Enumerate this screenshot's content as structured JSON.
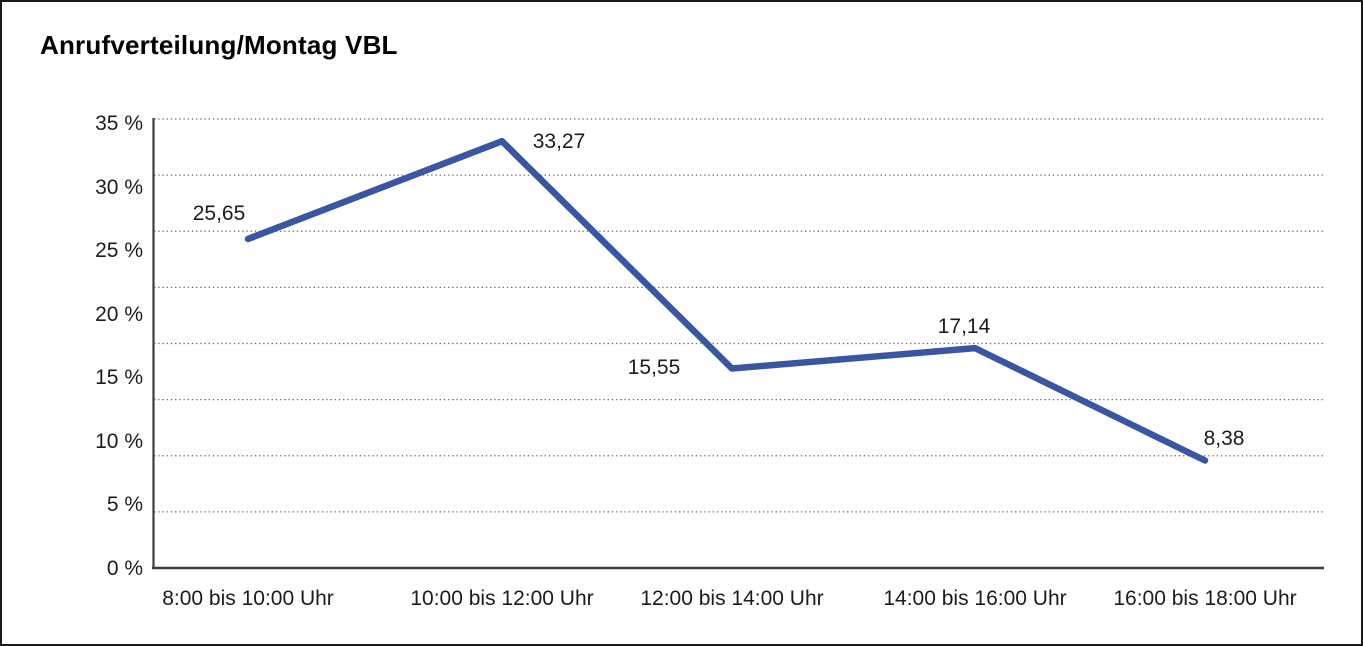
{
  "window": {
    "background": "#ffffff",
    "frame_border_color": "#1a1a1a"
  },
  "chart_data": {
    "type": "line",
    "title": "Anrufverteilung/Montag VBL",
    "categories": [
      "8:00 bis 10:00 Uhr",
      "10:00 bis 12:00 Uhr",
      "12:00 bis 14:00 Uhr",
      "14:00 bis 16:00 Uhr",
      "16:00 bis 18:00 Uhr"
    ],
    "values": [
      25.65,
      33.27,
      15.55,
      17.14,
      8.38
    ],
    "point_labels": [
      "25,65",
      "33,27",
      "15,55",
      "17,14",
      "8,38"
    ],
    "y_ticks": [
      "35 %",
      "30 %",
      "25 %",
      "20 %",
      "15 %",
      "10 %",
      "5 %",
      "0 %"
    ],
    "ylim": [
      0,
      35
    ],
    "xlabel": "",
    "ylabel": "",
    "legend": "none",
    "grid": "horizontal-dotted",
    "line_color": "#3A56A3",
    "axis_color": "#3d3d3d",
    "gridline_color": "#6e6e6e",
    "text_color": "#1c1c1c"
  }
}
